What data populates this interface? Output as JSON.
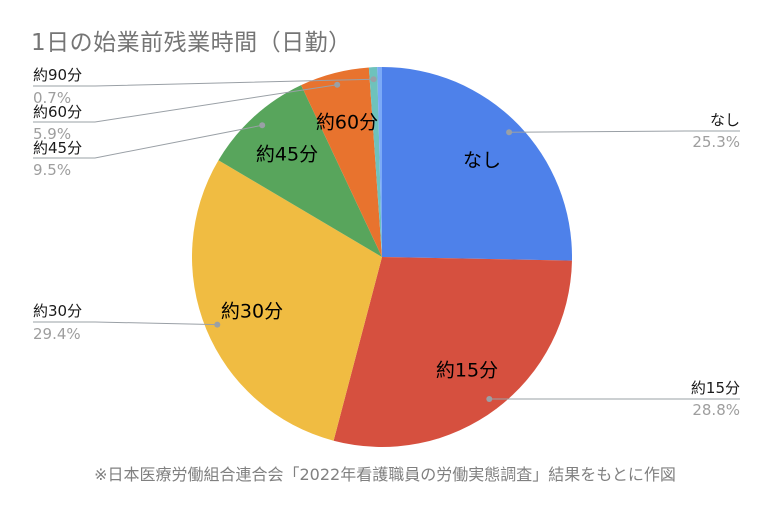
{
  "title": "1日の始業前残業時間（日勤）",
  "footer": "※日本医療労働組合連合会「2022年看護職員の労働実態調査」結果をもとに作図",
  "chart_data": {
    "type": "pie",
    "title": "1日の始業前残業時間（日勤）",
    "start_angle_deg": 0,
    "direction": "clockwise",
    "legend_position": "none",
    "labels_outside": true,
    "labels_inside": true,
    "label_color": "#1a1a1a",
    "pct_color": "#9e9e9e",
    "leader_line_color": "#9aa0a6",
    "background": "#ffffff",
    "title_color": "#757575",
    "slices": [
      {
        "label": "なし",
        "value": 25.3,
        "pct_label": "25.3%",
        "color": "#4e81ea"
      },
      {
        "label": "約15分",
        "value": 28.8,
        "pct_label": "28.8%",
        "color": "#d6503f"
      },
      {
        "label": "約30分",
        "value": 29.4,
        "pct_label": "29.4%",
        "color": "#f0bc42"
      },
      {
        "label": "約45分",
        "value": 9.5,
        "pct_label": "9.5%",
        "color": "#58a55c"
      },
      {
        "label": "約60分",
        "value": 5.9,
        "pct_label": "5.9%",
        "color": "#e8732e"
      },
      {
        "label": "約90分",
        "value": 0.7,
        "pct_label": "0.7%",
        "color": "#6ec2bc"
      },
      {
        "label": "",
        "value": 0.4,
        "pct_label": "",
        "color": "#7baaf7"
      }
    ]
  }
}
